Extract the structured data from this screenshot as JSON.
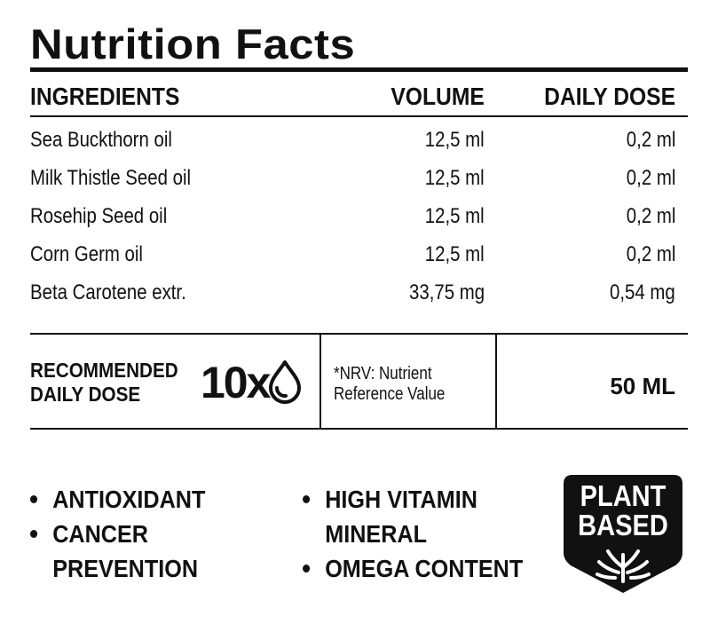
{
  "title": "Nutrition Facts",
  "table": {
    "headers": {
      "ingredients": "INGREDIENTS",
      "volume": "VOLUME",
      "daily_dose": "DAILY DOSE"
    },
    "rows": [
      {
        "name": "Sea Buckthorn oil",
        "volume": "12,5 ml",
        "daily_dose": "0,2 ml"
      },
      {
        "name": "Milk Thistle Seed oil",
        "volume": "12,5 ml",
        "daily_dose": "0,2 ml"
      },
      {
        "name": "Rosehip Seed oil",
        "volume": "12,5 ml",
        "daily_dose": "0,2 ml"
      },
      {
        "name": "Corn Germ oil",
        "volume": "12,5 ml",
        "daily_dose": "0,2 ml"
      },
      {
        "name": "Beta Carotene extr.",
        "volume": "33,75 mg",
        "daily_dose": "0,54 mg"
      }
    ]
  },
  "recommended": {
    "label_line1": "RECOMMENDED",
    "label_line2": "DAILY DOSE",
    "times": "10x",
    "icon": "drop-icon"
  },
  "nrv": {
    "line1": "*NRV: Nutrient",
    "line2": "Reference Value"
  },
  "total_volume": "50 ML",
  "benefits_left": [
    "ANTIOXIDANT",
    "CANCER",
    "PREVENTION"
  ],
  "benefits_right": [
    "HIGH VITAMIN",
    "MINERAL",
    "OMEGA CONTENT"
  ],
  "badge": {
    "line1": "PLANT",
    "line2": "BASED",
    "icon": "plant-sprout-icon",
    "color": "#111111"
  }
}
